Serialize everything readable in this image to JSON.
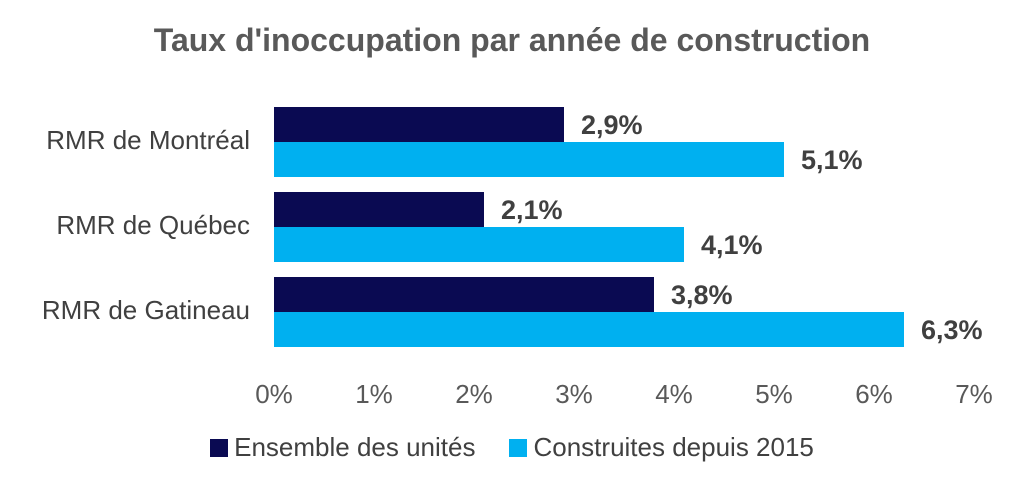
{
  "chart_data": {
    "type": "bar",
    "orientation": "horizontal",
    "title": "Taux d'inoccupation par année de construction",
    "categories": [
      "RMR de Montréal",
      "RMR de Québec",
      "RMR de Gatineau"
    ],
    "series": [
      {
        "name": "Ensemble des unités",
        "color": "#0a0a52",
        "values": [
          2.9,
          2.1,
          3.8
        ],
        "labels": [
          "2,9%",
          "2,1%",
          "3,8%"
        ]
      },
      {
        "name": "Construites depuis 2015",
        "color": "#00b0f0",
        "values": [
          5.1,
          4.1,
          6.3
        ],
        "labels": [
          "5,1%",
          "4,1%",
          "6,3%"
        ]
      }
    ],
    "xlim": [
      0,
      7
    ],
    "xticks": [
      "0%",
      "1%",
      "2%",
      "3%",
      "4%",
      "5%",
      "6%",
      "7%"
    ],
    "grid": false,
    "legend_position": "bottom"
  }
}
